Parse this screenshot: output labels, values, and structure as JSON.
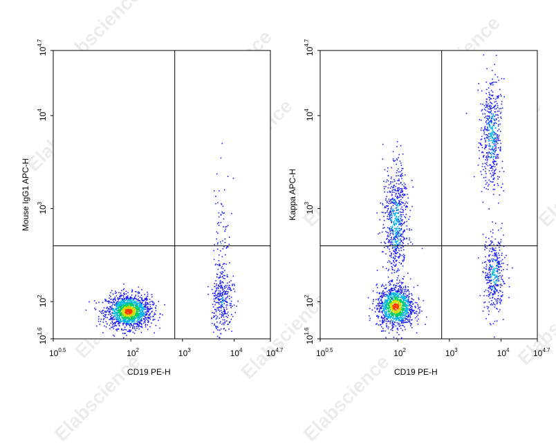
{
  "watermark_text": "Elabscience",
  "chart_data": [
    {
      "type": "scatter",
      "style": "flow-cytometry pseudocolor density dot plot",
      "xlabel": "CD19 PE-H",
      "ylabel": "Mouse IgG1 APC-H",
      "x_scale": "log",
      "y_scale": "log",
      "xlim": [
        0.5,
        4.7
      ],
      "ylim": [
        1.6,
        4.7
      ],
      "x_tick_labels": [
        {
          "base": "10",
          "exp": "0.5"
        },
        {
          "base": "10",
          "exp": "2"
        },
        {
          "base": "10",
          "exp": "3"
        },
        {
          "base": "10",
          "exp": "4"
        },
        {
          "base": "10",
          "exp": "4.7"
        }
      ],
      "y_tick_labels": [
        {
          "base": "10",
          "exp": "1.6"
        },
        {
          "base": "10",
          "exp": "2"
        },
        {
          "base": "10",
          "exp": "3"
        },
        {
          "base": "10",
          "exp": "4"
        },
        {
          "base": "10",
          "exp": "4.7"
        }
      ],
      "gate_x": 2.85,
      "gate_y": 2.6,
      "populations": [
        {
          "center_x": 1.95,
          "center_y": 1.9,
          "spread_x": 0.22,
          "spread_y": 0.09,
          "count": 1500,
          "core": "dense"
        },
        {
          "center_x": 3.75,
          "center_y": 2.0,
          "spread_x": 0.1,
          "spread_y": 0.16,
          "count": 280,
          "core": "sparse"
        },
        {
          "center_x": 3.75,
          "center_y": 2.55,
          "spread_x": 0.09,
          "spread_y": 0.45,
          "count": 110,
          "core": "sparse"
        }
      ],
      "density_colors": [
        "#1a1aff",
        "#00b4e6",
        "#00cc66",
        "#ccdd00",
        "#ff3b00"
      ]
    },
    {
      "type": "scatter",
      "style": "flow-cytometry pseudocolor density dot plot",
      "xlabel": "CD19 PE-H",
      "ylabel": "Kappa APC-H",
      "x_scale": "log",
      "y_scale": "log",
      "xlim": [
        0.5,
        4.7
      ],
      "ylim": [
        1.6,
        4.7
      ],
      "x_tick_labels": [
        {
          "base": "10",
          "exp": "0.5"
        },
        {
          "base": "10",
          "exp": "2"
        },
        {
          "base": "10",
          "exp": "3"
        },
        {
          "base": "10",
          "exp": "4"
        },
        {
          "base": "10",
          "exp": "4.7"
        }
      ],
      "y_tick_labels": [
        {
          "base": "10",
          "exp": "1.6"
        },
        {
          "base": "10",
          "exp": "2"
        },
        {
          "base": "10",
          "exp": "3"
        },
        {
          "base": "10",
          "exp": "4"
        },
        {
          "base": "10",
          "exp": "4.7"
        }
      ],
      "gate_x": 2.85,
      "gate_y": 2.6,
      "populations": [
        {
          "center_x": 1.95,
          "center_y": 1.95,
          "spread_x": 0.18,
          "spread_y": 0.11,
          "count": 1200,
          "core": "dense"
        },
        {
          "center_x": 1.95,
          "center_y": 2.85,
          "spread_x": 0.12,
          "spread_y": 0.3,
          "count": 700,
          "core": "medium"
        },
        {
          "center_x": 3.8,
          "center_y": 3.8,
          "spread_x": 0.1,
          "spread_y": 0.3,
          "count": 500,
          "core": "medium"
        },
        {
          "center_x": 3.85,
          "center_y": 2.3,
          "spread_x": 0.1,
          "spread_y": 0.2,
          "count": 380,
          "core": "medium"
        }
      ],
      "density_colors": [
        "#1a1aff",
        "#00b4e6",
        "#00cc66",
        "#ccdd00",
        "#ff3b00"
      ]
    }
  ]
}
